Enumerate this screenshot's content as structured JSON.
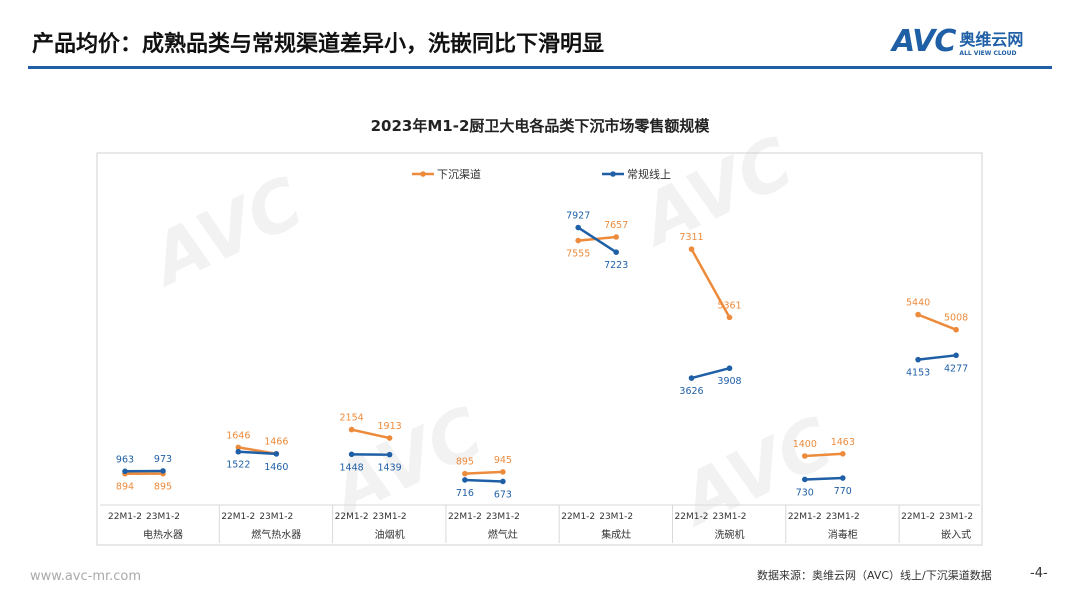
{
  "header": {
    "title": "产品均价：成熟品类与常规渠道差异小，洗嵌同比下滑明显",
    "logo_text": "AVC",
    "logo_cn": "奥维云网",
    "logo_en": "ALL VIEW CLOUD"
  },
  "footer": {
    "website": "www.avc-mr.com",
    "source": "数据来源：奥维云网（AVC）线上/下沉渠道数据",
    "page": "-4-"
  },
  "chart_data": {
    "type": "line",
    "title": "2023年M1-2厨卫大电各品类下沉市场零售额规模",
    "periods": [
      "22M1-2",
      "23M1-2"
    ],
    "categories": [
      "电热水器",
      "燃气热水器",
      "油烟机",
      "燃气灶",
      "集成灶",
      "洗碗机",
      "消毒柜",
      "嵌入式"
    ],
    "series": [
      {
        "name": "下沉渠道",
        "color": "#ed8b3c",
        "values": [
          [
            894,
            895
          ],
          [
            1646,
            1466
          ],
          [
            2154,
            1913
          ],
          [
            895,
            945
          ],
          [
            7555,
            7657
          ],
          [
            7311,
            5361
          ],
          [
            1400,
            1463
          ],
          [
            5440,
            5008
          ]
        ]
      },
      {
        "name": "常规线上",
        "color": "#1f5fa6",
        "values": [
          [
            963,
            973
          ],
          [
            1522,
            1460
          ],
          [
            1448,
            1439
          ],
          [
            716,
            673
          ],
          [
            7927,
            7223
          ],
          [
            3626,
            3908
          ],
          [
            730,
            770
          ],
          [
            4153,
            4277
          ]
        ]
      }
    ],
    "ylim": [
      0,
      11000
    ],
    "legend": "top-center",
    "grid": false
  }
}
